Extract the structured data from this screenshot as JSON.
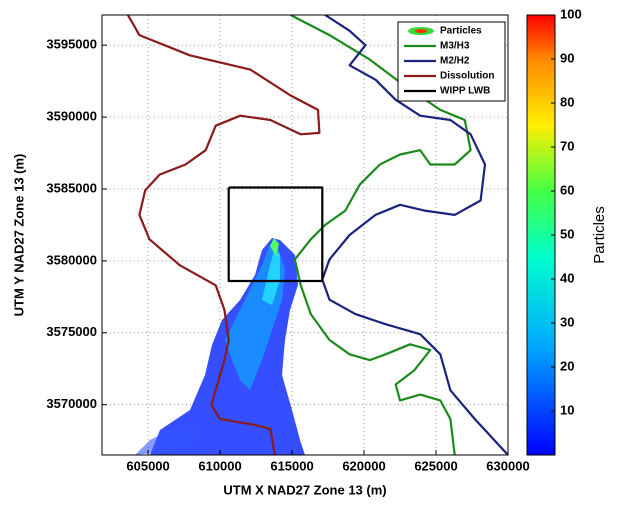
{
  "chart_data": {
    "type": "line",
    "x_label": "UTM X NAD27 Zone 13 (m)",
    "y_label": "UTM Y NAD27 Zone 13 (m)",
    "xlim": [
      601800,
      630000
    ],
    "ylim": [
      3566500,
      3597100
    ],
    "xticks": [
      605000,
      610000,
      615000,
      620000,
      625000,
      630000
    ],
    "yticks": [
      3570000,
      3575000,
      3580000,
      3585000,
      3590000,
      3595000
    ],
    "grid": true,
    "legend": "upper right",
    "field": {
      "name": "Particles"
    },
    "colorbar": {
      "label": "Particles",
      "lim": [
        0,
        100
      ],
      "ticks": [
        10,
        20,
        30,
        40,
        50,
        60,
        70,
        80,
        90,
        100
      ]
    },
    "series": [
      {
        "name": "M3/H3",
        "color": "#1a8a1a",
        "x": [
          614900,
          617600,
          620400,
          622800,
          625300,
          627000,
          627400,
          626300,
          624600,
          623900,
          622500,
          621100,
          619700,
          618700,
          617300,
          616300,
          615200,
          615600,
          616300,
          617600,
          619000,
          620400,
          621500,
          623200,
          624600,
          623500,
          622200,
          622500,
          623900,
          625300,
          626000,
          626300
        ],
        "y": [
          3597100,
          3595700,
          3594000,
          3592200,
          3590500,
          3589800,
          3587700,
          3586700,
          3586700,
          3587700,
          3587400,
          3586700,
          3585300,
          3583500,
          3582500,
          3581500,
          3580100,
          3578300,
          3576300,
          3574500,
          3573500,
          3573100,
          3573500,
          3574200,
          3573800,
          3572400,
          3571400,
          3570300,
          3570700,
          3570300,
          3569000,
          3566500
        ]
      },
      {
        "name": "M2/H2",
        "color": "#1a237e",
        "x": [
          617300,
          619000,
          620100,
          619000,
          620800,
          622200,
          623900,
          626000,
          627400,
          628400,
          628100,
          626300,
          624200,
          622500,
          620800,
          619000,
          617600,
          617100,
          617600,
          619400,
          621500,
          623900,
          625300,
          626000,
          627700,
          630000
        ],
        "y": [
          3597100,
          3596000,
          3595000,
          3593600,
          3592600,
          3591200,
          3590100,
          3589800,
          3588800,
          3586700,
          3584200,
          3583200,
          3583500,
          3583900,
          3583200,
          3581800,
          3580100,
          3578700,
          3577300,
          3576300,
          3575600,
          3574900,
          3573500,
          3571000,
          3569000,
          3566500
        ]
      },
      {
        "name": "Dissolution",
        "color": "#8b1a1a",
        "x": [
          603600,
          604400,
          607900,
          612100,
          614900,
          616800,
          616900,
          615600,
          613500,
          611400,
          609700,
          609000,
          607600,
          605800,
          604800,
          604400,
          605100,
          607200,
          609700,
          610300,
          610600,
          610300,
          609900,
          609400,
          610000,
          612400,
          613500,
          613800
        ],
        "y": [
          3597100,
          3595700,
          3594300,
          3593300,
          3591500,
          3590500,
          3588900,
          3588800,
          3589800,
          3590100,
          3589400,
          3587700,
          3586700,
          3586000,
          3584900,
          3583200,
          3581500,
          3579700,
          3578300,
          3576600,
          3574500,
          3573100,
          3571700,
          3570000,
          3569000,
          3568600,
          3568300,
          3566500
        ]
      },
      {
        "name": "WIPP LWB",
        "color": "#000000",
        "x": [
          610600,
          617100,
          617100,
          610600,
          610600
        ],
        "y": [
          3585100,
          3585100,
          3578600,
          3578600,
          3585100
        ]
      }
    ]
  }
}
